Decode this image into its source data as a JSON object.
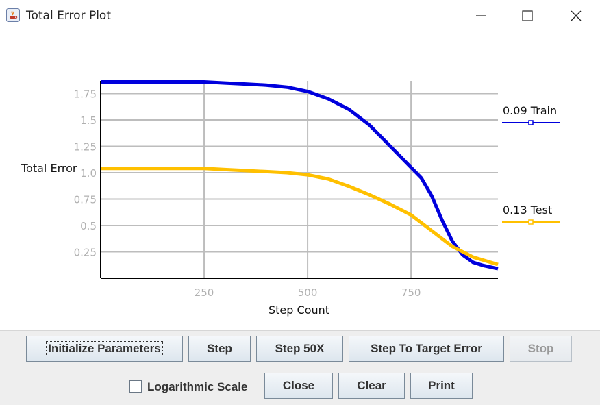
{
  "window": {
    "title": "Total Error Plot",
    "controls": [
      "minimize-icon",
      "maximize-icon",
      "close-icon"
    ]
  },
  "chart_data": {
    "type": "line",
    "xlabel": "Step Count",
    "ylabel": "Total Error",
    "xlim": [
      0,
      960
    ],
    "ylim": [
      0,
      1.87
    ],
    "x_ticks": [
      250,
      500,
      750
    ],
    "x_tick_labels": [
      "250",
      "500",
      "750"
    ],
    "y_ticks": [
      0.25,
      0.5,
      0.75,
      1.0,
      1.25,
      1.5,
      1.75
    ],
    "y_tick_labels": [
      "0.25",
      "0.5",
      "0.75",
      "1.0",
      "1.25",
      "1.5",
      "1.75"
    ],
    "grid": true,
    "legend_placement": "right",
    "series": [
      {
        "name": "0.09 Train",
        "color": "#0000dd",
        "x": [
          0,
          100,
          200,
          250,
          300,
          350,
          400,
          450,
          500,
          550,
          600,
          650,
          700,
          750,
          775,
          800,
          825,
          850,
          875,
          900,
          925,
          960
        ],
        "y": [
          1.86,
          1.86,
          1.86,
          1.86,
          1.85,
          1.84,
          1.83,
          1.81,
          1.77,
          1.7,
          1.6,
          1.45,
          1.25,
          1.05,
          0.95,
          0.78,
          0.55,
          0.35,
          0.22,
          0.15,
          0.12,
          0.09
        ]
      },
      {
        "name": "0.13 Test",
        "color": "#ffc000",
        "x": [
          0,
          100,
          200,
          250,
          300,
          350,
          400,
          450,
          500,
          550,
          600,
          650,
          700,
          750,
          800,
          850,
          900,
          960
        ],
        "y": [
          1.04,
          1.04,
          1.04,
          1.04,
          1.03,
          1.02,
          1.01,
          1.0,
          0.98,
          0.94,
          0.87,
          0.79,
          0.7,
          0.6,
          0.45,
          0.3,
          0.2,
          0.13
        ]
      }
    ]
  },
  "controls": {
    "initialize_label": "Initialize Parameters",
    "step_label": "Step",
    "step50_label": "Step 50X",
    "step_target_label": "Step To Target Error",
    "stop_label": "Stop",
    "log_scale_label": "Logarithmic Scale",
    "log_scale_checked": false,
    "close_label": "Close",
    "clear_label": "Clear",
    "print_label": "Print"
  }
}
